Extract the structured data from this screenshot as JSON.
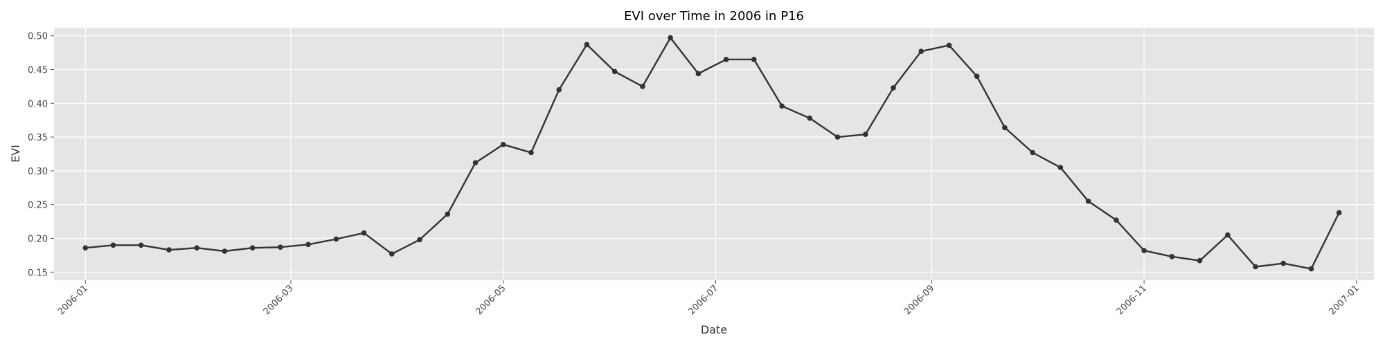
{
  "chart_data": {
    "type": "line",
    "title": "EVI over Time in 2006 in P16",
    "xlabel": "Date",
    "ylabel": "EVI",
    "x_type": "date",
    "xlim": [
      "2005-12-23",
      "2007-01-06"
    ],
    "ylim": [
      0.138,
      0.512
    ],
    "x_ticks": [
      "2006-01-01",
      "2006-03-01",
      "2006-05-01",
      "2006-07-01",
      "2006-09-01",
      "2006-11-01",
      "2007-01-01"
    ],
    "x_tick_labels": [
      "2006-01",
      "2006-03",
      "2006-05",
      "2006-07",
      "2006-09",
      "2006-11",
      "2007-01"
    ],
    "y_ticks": [
      0.15,
      0.2,
      0.25,
      0.3,
      0.35,
      0.4,
      0.45,
      0.5
    ],
    "y_tick_labels": [
      "0.15",
      "0.20",
      "0.25",
      "0.30",
      "0.35",
      "0.40",
      "0.45",
      "0.50"
    ],
    "grid": true,
    "background_color": "#e5e5e5",
    "line_color": "#333333",
    "series": [
      {
        "x": [
          "2006-01-01",
          "2006-01-09",
          "2006-01-17",
          "2006-01-25",
          "2006-02-02",
          "2006-02-10",
          "2006-02-18",
          "2006-02-26",
          "2006-03-06",
          "2006-03-14",
          "2006-03-22",
          "2006-03-30",
          "2006-04-07",
          "2006-04-15",
          "2006-04-23",
          "2006-05-01",
          "2006-05-09",
          "2006-05-17",
          "2006-05-25",
          "2006-06-02",
          "2006-06-10",
          "2006-06-18",
          "2006-06-26",
          "2006-07-04",
          "2006-07-12",
          "2006-07-20",
          "2006-07-28",
          "2006-08-05",
          "2006-08-13",
          "2006-08-21",
          "2006-08-29",
          "2006-09-06",
          "2006-09-14",
          "2006-09-22",
          "2006-09-30",
          "2006-10-08",
          "2006-10-16",
          "2006-10-24",
          "2006-11-01",
          "2006-11-09",
          "2006-11-17",
          "2006-11-25",
          "2006-12-03",
          "2006-12-11",
          "2006-12-19",
          "2006-12-27"
        ],
        "y": [
          0.186,
          0.19,
          0.19,
          0.183,
          0.186,
          0.181,
          0.186,
          0.187,
          0.191,
          0.199,
          0.208,
          0.177,
          0.198,
          0.236,
          0.312,
          0.339,
          0.327,
          0.42,
          0.487,
          0.447,
          0.425,
          0.497,
          0.444,
          0.465,
          0.465,
          0.396,
          0.378,
          0.35,
          0.354,
          0.423,
          0.477,
          0.486,
          0.44,
          0.364,
          0.327,
          0.305,
          0.255,
          0.227,
          0.182,
          0.173,
          0.167,
          0.205,
          0.158,
          0.163,
          0.155,
          0.238
        ]
      }
    ]
  }
}
